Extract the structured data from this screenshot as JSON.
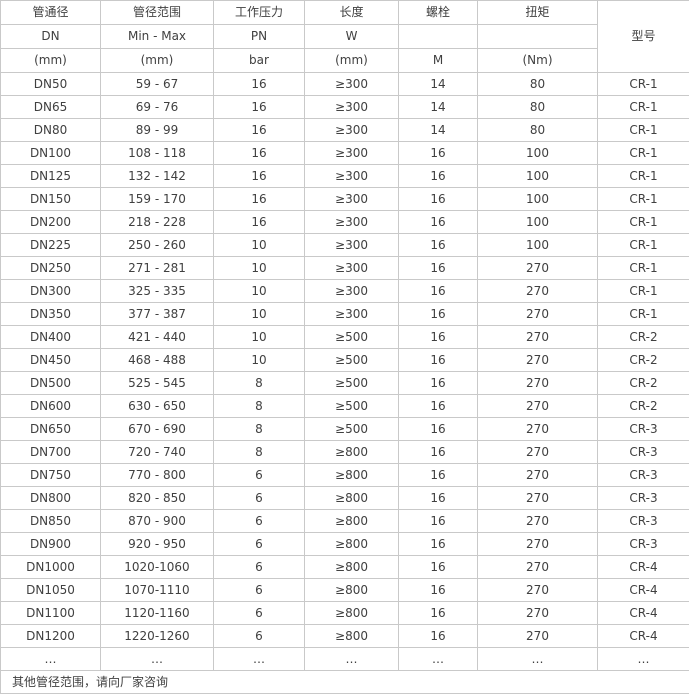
{
  "table": {
    "columns": [
      {
        "title": "管通径",
        "sub": "DN",
        "unit": "(mm)"
      },
      {
        "title": "管径范围",
        "sub": "Min - Max",
        "unit": "(mm)"
      },
      {
        "title": "工作压力",
        "sub": "PN",
        "unit": "bar"
      },
      {
        "title": "长度",
        "sub": "W",
        "unit": "(mm)"
      },
      {
        "title": "螺栓",
        "sub": "",
        "unit": "M"
      },
      {
        "title": "扭矩",
        "sub": "",
        "unit": "(Nm)"
      },
      {
        "title": "型号",
        "sub": "",
        "unit": ""
      }
    ],
    "rows": [
      [
        "DN50",
        "59 - 67",
        "16",
        "≥300",
        "14",
        "80",
        "CR-1"
      ],
      [
        "DN65",
        "69 - 76",
        "16",
        "≥300",
        "14",
        "80",
        "CR-1"
      ],
      [
        "DN80",
        "89 - 99",
        "16",
        "≥300",
        "14",
        "80",
        "CR-1"
      ],
      [
        "DN100",
        "108 - 118",
        "16",
        "≥300",
        "16",
        "100",
        "CR-1"
      ],
      [
        "DN125",
        "132 - 142",
        "16",
        "≥300",
        "16",
        "100",
        "CR-1"
      ],
      [
        "DN150",
        "159 - 170",
        "16",
        "≥300",
        "16",
        "100",
        "CR-1"
      ],
      [
        "DN200",
        "218 - 228",
        "16",
        "≥300",
        "16",
        "100",
        "CR-1"
      ],
      [
        "DN225",
        "250 - 260",
        "10",
        "≥300",
        "16",
        "100",
        "CR-1"
      ],
      [
        "DN250",
        "271 - 281",
        "10",
        "≥300",
        "16",
        "270",
        "CR-1"
      ],
      [
        "DN300",
        "325 - 335",
        "10",
        "≥300",
        "16",
        "270",
        "CR-1"
      ],
      [
        "DN350",
        "377 - 387",
        "10",
        "≥300",
        "16",
        "270",
        "CR-1"
      ],
      [
        "DN400",
        "421 - 440",
        "10",
        "≥500",
        "16",
        "270",
        "CR-2"
      ],
      [
        "DN450",
        "468 - 488",
        "10",
        "≥500",
        "16",
        "270",
        "CR-2"
      ],
      [
        "DN500",
        "525 - 545",
        "8",
        "≥500",
        "16",
        "270",
        "CR-2"
      ],
      [
        "DN600",
        "630 - 650",
        "8",
        "≥500",
        "16",
        "270",
        "CR-2"
      ],
      [
        "DN650",
        "670 - 690",
        "8",
        "≥500",
        "16",
        "270",
        "CR-3"
      ],
      [
        "DN700",
        "720 - 740",
        "8",
        "≥800",
        "16",
        "270",
        "CR-3"
      ],
      [
        "DN750",
        "770 - 800",
        "6",
        "≥800",
        "16",
        "270",
        "CR-3"
      ],
      [
        "DN800",
        "820 - 850",
        "6",
        "≥800",
        "16",
        "270",
        "CR-3"
      ],
      [
        "DN850",
        "870 - 900",
        "6",
        "≥800",
        "16",
        "270",
        "CR-3"
      ],
      [
        "DN900",
        "920 - 950",
        "6",
        "≥800",
        "16",
        "270",
        "CR-3"
      ],
      [
        "DN1000",
        "1020-1060",
        "6",
        "≥800",
        "16",
        "270",
        "CR-4"
      ],
      [
        "DN1050",
        "1070-1110",
        "6",
        "≥800",
        "16",
        "270",
        "CR-4"
      ],
      [
        "DN1100",
        "1120-1160",
        "6",
        "≥800",
        "16",
        "270",
        "CR-4"
      ],
      [
        "DN1200",
        "1220-1260",
        "6",
        "≥800",
        "16",
        "270",
        "CR-4"
      ]
    ],
    "ellipsis_row": [
      "…",
      "…",
      "…",
      "…",
      "…",
      "…",
      "…"
    ],
    "footer_note": "其他管径范围，请向厂家咨询"
  },
  "colors": {
    "border": "#c9c9c9",
    "text": "#404040",
    "background": "#ffffff"
  }
}
